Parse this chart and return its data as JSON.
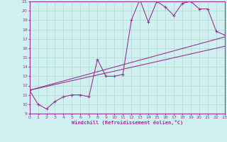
{
  "xlabel": "Windchill (Refroidissement éolien,°C)",
  "bg_color": "#cff0ee",
  "line_color": "#993399",
  "grid_color": "#aaddcc",
  "xmin": 0,
  "xmax": 23,
  "ymin": 9,
  "ymax": 21,
  "line1_x": [
    0,
    1,
    2,
    3,
    4,
    5,
    6,
    7,
    8,
    9,
    10,
    11,
    12,
    13,
    14,
    15,
    16,
    17,
    18,
    19,
    20,
    21,
    22,
    23
  ],
  "line1_y": [
    11.5,
    10.0,
    9.5,
    10.3,
    10.8,
    11.0,
    11.0,
    10.8,
    14.8,
    13.0,
    13.0,
    13.2,
    19.0,
    21.2,
    18.8,
    21.0,
    20.4,
    19.5,
    20.8,
    21.0,
    20.2,
    20.2,
    17.8,
    17.4
  ],
  "line2_x": [
    0,
    23
  ],
  "line2_y": [
    11.5,
    17.2
  ],
  "line3_x": [
    0,
    23
  ],
  "line3_y": [
    11.5,
    16.2
  ]
}
